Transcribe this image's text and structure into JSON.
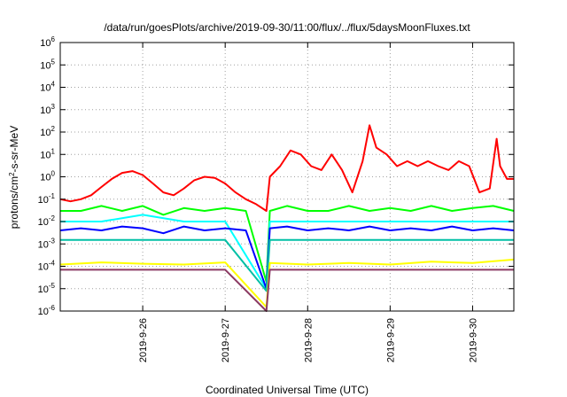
{
  "chart_data": {
    "type": "line",
    "title": "/data/run/goesPlots/archive/2019-09-30/11:00/flux/../flux/5daysMoonFluxes.txt",
    "xlabel": "Coordinated Universal Time (UTC)",
    "ylabel": {
      "base": "protons/cm",
      "sup": "2",
      "rest": "-s-sr-MeV"
    },
    "x_scale": "time",
    "xlim": [
      "2019-09-25T00:00",
      "2019-09-30T12:00"
    ],
    "x_ticks": [
      "2019-9-26",
      "2019-9-27",
      "2019-9-28",
      "2019-9-29",
      "2019-9-30"
    ],
    "y_scale": "log",
    "ylim": [
      1e-06,
      1000000.0
    ],
    "y_ticks": [
      {
        "base": "10",
        "exp": "-6"
      },
      {
        "base": "10",
        "exp": "-5"
      },
      {
        "base": "10",
        "exp": "-4"
      },
      {
        "base": "10",
        "exp": "-3"
      },
      {
        "base": "10",
        "exp": "-2"
      },
      {
        "base": "10",
        "exp": "-1"
      },
      {
        "base": "10",
        "exp": "0"
      },
      {
        "base": "10",
        "exp": "1"
      },
      {
        "base": "10",
        "exp": "2"
      },
      {
        "base": "10",
        "exp": "3"
      },
      {
        "base": "10",
        "exp": "4"
      },
      {
        "base": "10",
        "exp": "5"
      },
      {
        "base": "10",
        "exp": "6"
      }
    ],
    "grid": true,
    "legend": "none",
    "series": [
      {
        "color": "#ff0000",
        "points": [
          [
            "2019-09-25T00:00",
            0.1
          ],
          [
            "2019-09-25T03:00",
            0.08
          ],
          [
            "2019-09-25T06:00",
            0.1
          ],
          [
            "2019-09-25T09:00",
            0.15
          ],
          [
            "2019-09-25T12:00",
            0.35
          ],
          [
            "2019-09-25T15:00",
            0.8
          ],
          [
            "2019-09-25T18:00",
            1.5
          ],
          [
            "2019-09-25T21:00",
            1.8
          ],
          [
            "2019-09-26T00:00",
            1.2
          ],
          [
            "2019-09-26T03:00",
            0.5
          ],
          [
            "2019-09-26T06:00",
            0.2
          ],
          [
            "2019-09-26T09:00",
            0.15
          ],
          [
            "2019-09-26T12:00",
            0.3
          ],
          [
            "2019-09-26T15:00",
            0.7
          ],
          [
            "2019-09-26T18:00",
            1.0
          ],
          [
            "2019-09-26T21:00",
            0.9
          ],
          [
            "2019-09-27T00:00",
            0.5
          ],
          [
            "2019-09-27T03:00",
            0.2
          ],
          [
            "2019-09-27T06:00",
            0.1
          ],
          [
            "2019-09-27T09:00",
            0.06
          ],
          [
            "2019-09-27T12:00",
            0.03
          ],
          [
            "2019-09-27T13:00",
            1.0
          ],
          [
            "2019-09-27T16:00",
            3.0
          ],
          [
            "2019-09-27T19:00",
            15
          ],
          [
            "2019-09-27T22:00",
            10
          ],
          [
            "2019-09-28T01:00",
            3.0
          ],
          [
            "2019-09-28T04:00",
            2.0
          ],
          [
            "2019-09-28T07:00",
            10
          ],
          [
            "2019-09-28T10:00",
            2.0
          ],
          [
            "2019-09-28T13:00",
            0.2
          ],
          [
            "2019-09-28T16:00",
            5.0
          ],
          [
            "2019-09-28T18:00",
            200
          ],
          [
            "2019-09-28T20:00",
            20
          ],
          [
            "2019-09-28T23:00",
            10
          ],
          [
            "2019-09-29T02:00",
            3.0
          ],
          [
            "2019-09-29T05:00",
            5.0
          ],
          [
            "2019-09-29T08:00",
            3.0
          ],
          [
            "2019-09-29T11:00",
            5.0
          ],
          [
            "2019-09-29T14:00",
            3.0
          ],
          [
            "2019-09-29T17:00",
            2.0
          ],
          [
            "2019-09-29T20:00",
            5.0
          ],
          [
            "2019-09-29T23:00",
            3.0
          ],
          [
            "2019-09-30T02:00",
            0.2
          ],
          [
            "2019-09-30T05:00",
            0.3
          ],
          [
            "2019-09-30T07:00",
            50
          ],
          [
            "2019-09-30T08:00",
            3.0
          ],
          [
            "2019-09-30T10:00",
            0.8
          ],
          [
            "2019-09-30T12:00",
            0.8
          ]
        ]
      },
      {
        "color": "#00ff00",
        "points": [
          [
            "2019-09-25T00:00",
            0.03
          ],
          [
            "2019-09-25T06:00",
            0.03
          ],
          [
            "2019-09-25T12:00",
            0.05
          ],
          [
            "2019-09-25T18:00",
            0.03
          ],
          [
            "2019-09-26T00:00",
            0.05
          ],
          [
            "2019-09-26T06:00",
            0.02
          ],
          [
            "2019-09-26T12:00",
            0.04
          ],
          [
            "2019-09-26T18:00",
            0.03
          ],
          [
            "2019-09-27T00:00",
            0.04
          ],
          [
            "2019-09-27T06:00",
            0.03
          ],
          [
            "2019-09-27T12:00",
            2e-05
          ],
          [
            "2019-09-27T13:00",
            0.03
          ],
          [
            "2019-09-27T18:00",
            0.05
          ],
          [
            "2019-09-28T00:00",
            0.03
          ],
          [
            "2019-09-28T06:00",
            0.03
          ],
          [
            "2019-09-28T12:00",
            0.05
          ],
          [
            "2019-09-28T18:00",
            0.03
          ],
          [
            "2019-09-29T00:00",
            0.04
          ],
          [
            "2019-09-29T06:00",
            0.03
          ],
          [
            "2019-09-29T12:00",
            0.05
          ],
          [
            "2019-09-29T18:00",
            0.03
          ],
          [
            "2019-09-30T00:00",
            0.04
          ],
          [
            "2019-09-30T06:00",
            0.05
          ],
          [
            "2019-09-30T12:00",
            0.03
          ]
        ]
      },
      {
        "color": "#00ffff",
        "points": [
          [
            "2019-09-25T00:00",
            0.01
          ],
          [
            "2019-09-25T12:00",
            0.01
          ],
          [
            "2019-09-26T00:00",
            0.02
          ],
          [
            "2019-09-26T12:00",
            0.01
          ],
          [
            "2019-09-27T00:00",
            0.01
          ],
          [
            "2019-09-27T12:00",
            1e-05
          ],
          [
            "2019-09-27T13:00",
            0.01
          ],
          [
            "2019-09-28T00:00",
            0.01
          ],
          [
            "2019-09-28T12:00",
            0.01
          ],
          [
            "2019-09-29T00:00",
            0.01
          ],
          [
            "2019-09-29T12:00",
            0.01
          ],
          [
            "2019-09-30T00:00",
            0.01
          ],
          [
            "2019-09-30T12:00",
            0.01
          ]
        ]
      },
      {
        "color": "#0000ff",
        "points": [
          [
            "2019-09-25T00:00",
            0.004
          ],
          [
            "2019-09-25T06:00",
            0.005
          ],
          [
            "2019-09-25T12:00",
            0.004
          ],
          [
            "2019-09-25T18:00",
            0.006
          ],
          [
            "2019-09-26T00:00",
            0.005
          ],
          [
            "2019-09-26T06:00",
            0.003
          ],
          [
            "2019-09-26T12:00",
            0.006
          ],
          [
            "2019-09-26T18:00",
            0.004
          ],
          [
            "2019-09-27T00:00",
            0.005
          ],
          [
            "2019-09-27T06:00",
            0.004
          ],
          [
            "2019-09-27T12:00",
            1e-05
          ],
          [
            "2019-09-27T13:00",
            0.005
          ],
          [
            "2019-09-27T18:00",
            0.006
          ],
          [
            "2019-09-28T00:00",
            0.004
          ],
          [
            "2019-09-28T06:00",
            0.005
          ],
          [
            "2019-09-28T12:00",
            0.004
          ],
          [
            "2019-09-28T18:00",
            0.006
          ],
          [
            "2019-09-29T00:00",
            0.004
          ],
          [
            "2019-09-29T06:00",
            0.005
          ],
          [
            "2019-09-29T12:00",
            0.004
          ],
          [
            "2019-09-29T18:00",
            0.006
          ],
          [
            "2019-09-30T00:00",
            0.004
          ],
          [
            "2019-09-30T06:00",
            0.005
          ],
          [
            "2019-09-30T12:00",
            0.004
          ]
        ]
      },
      {
        "color": "#00bfa5",
        "points": [
          [
            "2019-09-25T00:00",
            0.0015
          ],
          [
            "2019-09-25T12:00",
            0.0015
          ],
          [
            "2019-09-26T00:00",
            0.0015
          ],
          [
            "2019-09-26T12:00",
            0.0015
          ],
          [
            "2019-09-27T00:00",
            0.0015
          ],
          [
            "2019-09-27T12:00",
            8e-06
          ],
          [
            "2019-09-27T13:00",
            0.0015
          ],
          [
            "2019-09-28T00:00",
            0.0015
          ],
          [
            "2019-09-28T12:00",
            0.0015
          ],
          [
            "2019-09-29T00:00",
            0.0015
          ],
          [
            "2019-09-29T12:00",
            0.0015
          ],
          [
            "2019-09-30T00:00",
            0.0015
          ],
          [
            "2019-09-30T12:00",
            0.0015
          ]
        ]
      },
      {
        "color": "#ffff00",
        "points": [
          [
            "2019-09-25T00:00",
            0.00012
          ],
          [
            "2019-09-25T12:00",
            0.00015
          ],
          [
            "2019-09-26T00:00",
            0.00013
          ],
          [
            "2019-09-26T12:00",
            0.00012
          ],
          [
            "2019-09-27T00:00",
            0.00015
          ],
          [
            "2019-09-27T12:00",
            1.5e-06
          ],
          [
            "2019-09-27T13:00",
            0.00014
          ],
          [
            "2019-09-28T00:00",
            0.00012
          ],
          [
            "2019-09-28T12:00",
            0.00014
          ],
          [
            "2019-09-29T00:00",
            0.00012
          ],
          [
            "2019-09-29T12:00",
            0.00016
          ],
          [
            "2019-09-30T00:00",
            0.00014
          ],
          [
            "2019-09-30T12:00",
            0.0002
          ]
        ]
      },
      {
        "color": "#8b3a62",
        "points": [
          [
            "2019-09-25T00:00",
            7e-05
          ],
          [
            "2019-09-25T12:00",
            7e-05
          ],
          [
            "2019-09-26T00:00",
            7e-05
          ],
          [
            "2019-09-26T12:00",
            7e-05
          ],
          [
            "2019-09-27T00:00",
            7e-05
          ],
          [
            "2019-09-27T12:00",
            1e-06
          ],
          [
            "2019-09-27T13:00",
            7e-05
          ],
          [
            "2019-09-28T00:00",
            7e-05
          ],
          [
            "2019-09-28T12:00",
            7e-05
          ],
          [
            "2019-09-29T00:00",
            7e-05
          ],
          [
            "2019-09-29T12:00",
            7e-05
          ],
          [
            "2019-09-30T00:00",
            7e-05
          ],
          [
            "2019-09-30T12:00",
            7e-05
          ]
        ]
      }
    ]
  }
}
